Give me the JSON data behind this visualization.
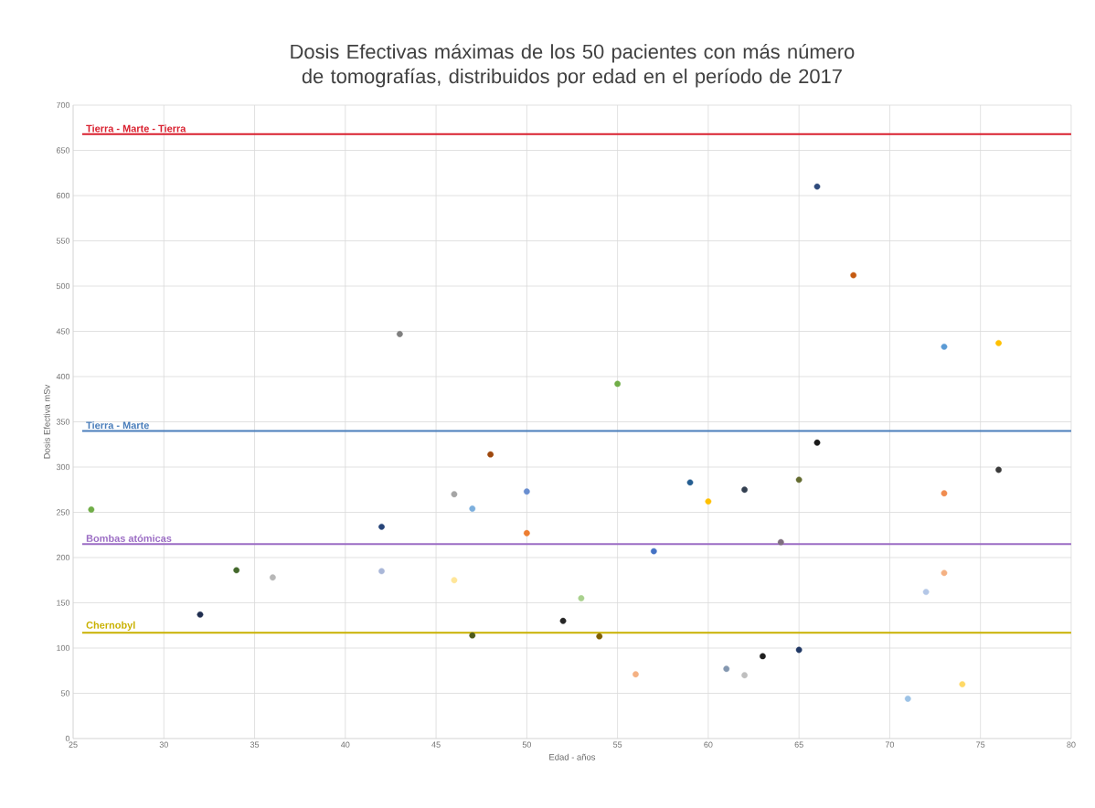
{
  "chart_data": {
    "type": "scatter",
    "title": "Dosis Efectivas máximas de los 50 pacientes con más número de tomografías, distribuidos por edad en el período de 2017",
    "xlabel": "Edad - años",
    "ylabel": "Dosis Efectiva mSv",
    "x": [
      26,
      32,
      34,
      36,
      42,
      42,
      43,
      46,
      46,
      47,
      47,
      48,
      50,
      50,
      52,
      53,
      54,
      55,
      56,
      57,
      59,
      60,
      61,
      62,
      62,
      63,
      64,
      65,
      65,
      66,
      66,
      68,
      71,
      72,
      73,
      73,
      73,
      74,
      76,
      76
    ],
    "values": [
      253,
      137,
      186,
      178,
      234,
      185,
      447,
      270,
      175,
      254,
      114,
      314,
      273,
      227,
      130,
      155,
      113,
      392,
      71,
      207,
      283,
      262,
      77,
      275,
      70,
      91,
      217,
      286,
      98,
      327,
      610,
      512,
      44,
      162,
      271,
      183,
      433,
      60,
      297,
      437
    ],
    "colors": [
      "#70ad47",
      "#1f2d4f",
      "#43682b",
      "#b7b7b7",
      "#264478",
      "#a9b7d8",
      "#7f7f7f",
      "#a5a5a5",
      "#ffe699",
      "#7cafdd",
      "#4e5a1c",
      "#9e480e",
      "#698ed0",
      "#ed7d31",
      "#262626",
      "#a9d18e",
      "#7f5f00",
      "#70ad47",
      "#f4b183",
      "#4472c4",
      "#255e91",
      "#ffc000",
      "#8497b0",
      "#333f50",
      "#bfbfbf",
      "#1f1f1f",
      "#7f6f7f",
      "#636b2f",
      "#203864",
      "#1a1a1a",
      "#2f4b7c",
      "#c55a11",
      "#9dc3e6",
      "#b4c7e7",
      "#f08c50",
      "#f4b183",
      "#5b9bd5",
      "#ffd966",
      "#3a3a3a",
      "#ffc000"
    ],
    "xlim": [
      25,
      80
    ],
    "xticks": [
      25,
      30,
      35,
      40,
      45,
      50,
      55,
      60,
      65,
      70,
      75,
      80
    ],
    "ylim": [
      0,
      700
    ],
    "yticks": [
      0,
      50,
      100,
      150,
      200,
      250,
      300,
      350,
      400,
      450,
      500,
      550,
      600,
      650,
      700
    ],
    "grid": true,
    "marker": "circle",
    "ref_lines": [
      {
        "axis": "y",
        "value": 668,
        "label": "Tierra - Marte - Tierra",
        "color": "#d9202f"
      },
      {
        "axis": "y",
        "value": 340,
        "label": "Tierra - Marte",
        "color": "#4a7ebb"
      },
      {
        "axis": "y",
        "value": 215,
        "label": "Bombas atómicas",
        "color": "#9b6cc4"
      },
      {
        "axis": "y",
        "value": 117,
        "label": "Chernobyl",
        "color": "#c9b100"
      }
    ]
  }
}
